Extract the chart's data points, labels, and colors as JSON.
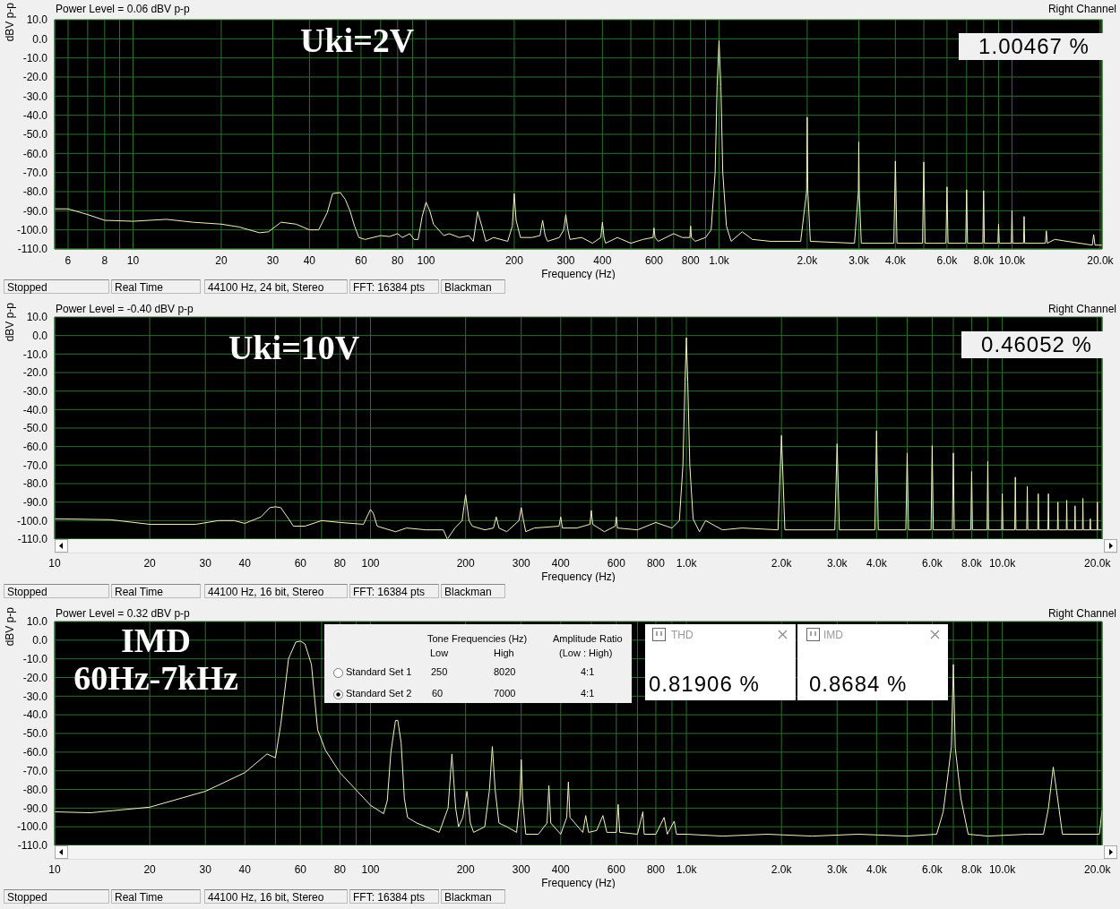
{
  "chart_data": [
    {
      "type": "line",
      "subtitle": "Power Level = 0.06 dBV p-p",
      "xlabel": "Frequency (Hz)",
      "ylabel": "dBV p-p",
      "log": "x",
      "grid": true,
      "color": "#f2f2c4",
      "annotations": [
        "Uki=2V",
        "1.00467 %",
        "Right Channel",
        "Stopped",
        "Real Time",
        "44100 Hz, 24 bit, Stereo",
        "FFT: 16384 pts",
        "Blackman"
      ],
      "xlim": [
        5.4,
        20300
      ],
      "ylim": [
        -110,
        10
      ],
      "xticks": [
        6,
        {
          "value": 7,
          "label": null
        },
        8,
        {
          "value": 9,
          "label": null
        },
        10,
        20,
        30,
        40,
        {
          "value": 50,
          "label": null
        },
        60,
        {
          "value": 70,
          "label": null
        },
        80,
        {
          "value": 90,
          "label": null
        },
        100,
        200,
        300,
        400,
        {
          "value": 500,
          "label": null
        },
        600,
        {
          "value": 700,
          "label": null
        },
        800,
        {
          "value": 900,
          "label": null
        },
        {
          "value": 1000,
          "label": "1.0k"
        },
        {
          "value": 2000,
          "label": "2.0k"
        },
        {
          "value": 3000,
          "label": "3.0k"
        },
        {
          "value": 4000,
          "label": "4.0k"
        },
        {
          "value": 5000,
          "label": null
        },
        {
          "value": 6000,
          "label": "6.0k"
        },
        {
          "value": 7000,
          "label": null
        },
        {
          "value": 8000,
          "label": "8.0k"
        },
        {
          "value": 9000,
          "label": null
        },
        {
          "value": 10000,
          "label": "10.0k"
        },
        {
          "value": 20000,
          "label": "20.0k"
        }
      ],
      "yticks": [
        {
          "value": 10,
          "label": "10.0"
        },
        {
          "value": 0,
          "label": "0.0"
        },
        {
          "value": -10,
          "label": "-10.0"
        },
        {
          "value": -20,
          "label": "-20.0"
        },
        {
          "value": -30,
          "label": "-30.0"
        },
        {
          "value": -40,
          "label": "-40.0"
        },
        {
          "value": -50,
          "label": "-50.0"
        },
        {
          "value": -60,
          "label": "-60.0"
        },
        {
          "value": -70,
          "label": "-70.0"
        },
        {
          "value": -80,
          "label": "-80.0"
        },
        {
          "value": -90,
          "label": "-90.0"
        },
        {
          "value": -100,
          "label": "-100.0"
        },
        {
          "value": -110,
          "label": "-110.0"
        }
      ],
      "x": [
        5.4,
        6,
        7,
        8,
        10,
        13,
        16,
        20,
        23,
        27,
        29,
        32,
        36,
        40,
        43,
        46,
        48,
        51,
        53,
        55,
        57,
        59,
        62,
        70,
        75,
        80,
        83,
        88,
        91,
        94,
        97,
        100,
        103,
        106,
        115,
        120,
        130,
        140,
        145,
        150,
        155,
        160,
        170,
        190,
        197,
        200,
        203,
        210,
        230,
        245,
        250,
        255,
        260,
        285,
        295,
        300,
        305,
        310,
        340,
        370,
        395,
        400,
        405,
        410,
        450,
        500,
        550,
        595,
        600,
        605,
        620,
        700,
        750,
        795,
        800,
        805,
        830,
        900,
        940,
        970,
        985,
        1000,
        1015,
        1030,
        1060,
        1100,
        1200,
        1300,
        1500,
        1900,
        1990,
        2000,
        2010,
        2050,
        2900,
        2990,
        3000,
        3010,
        3060,
        3950,
        4000,
        4050,
        4950,
        5000,
        5050,
        5950,
        6000,
        6050,
        6950,
        7000,
        7050,
        7950,
        8000,
        8050,
        8950,
        9000,
        9050,
        9950,
        10000,
        10050,
        10950,
        11000,
        11050,
        13000,
        13100,
        13200,
        14000,
        18800,
        19000,
        19200,
        20300
      ],
      "values": [
        -89,
        -89,
        -92,
        -95,
        -95.5,
        -94.5,
        -96,
        -97,
        -98.5,
        -101.5,
        -101,
        -96,
        -97,
        -100,
        -100,
        -91,
        -81,
        -80.5,
        -84,
        -90,
        -98,
        -104,
        -105,
        -103,
        -103.5,
        -102,
        -104,
        -102,
        -105,
        -105,
        -93,
        -85.5,
        -90,
        -97,
        -103,
        -102,
        -104,
        -103,
        -106,
        -90.5,
        -98,
        -106,
        -104,
        -106,
        -98,
        -81,
        -95,
        -104,
        -104,
        -103,
        -95,
        -103,
        -106,
        -104,
        -100,
        -92,
        -100,
        -105,
        -104,
        -107,
        -104,
        -96,
        -104,
        -107,
        -104,
        -107,
        -105,
        -104,
        -99,
        -104,
        -106,
        -102,
        -104,
        -104,
        -98,
        -104,
        -106,
        -104,
        -100,
        -70,
        -25,
        -1,
        -25,
        -70,
        -98,
        -106,
        -101,
        -105,
        -106,
        -106,
        -80,
        -41,
        -80,
        -106,
        -107,
        -80,
        -54,
        -80,
        -107,
        -107,
        -64,
        -107,
        -107,
        -64.5,
        -107,
        -107,
        -77.5,
        -107,
        -107,
        -79,
        -107,
        -107,
        -79.5,
        -107,
        -107,
        -97,
        -107,
        -107,
        -90,
        -107,
        -107,
        -93,
        -107,
        -107,
        -100.5,
        -107,
        -105,
        -108,
        -102.5,
        -108,
        -108
      ]
    },
    {
      "type": "line",
      "subtitle": "Power Level = -0.40 dBV p-p",
      "xlabel": "Frequency (Hz)",
      "ylabel": "dBV p-p",
      "log": "x",
      "grid": true,
      "color": "#f2f2c4",
      "annotations": [
        "Uki=10V",
        "0.46052 %",
        "Right Channel",
        "Stopped",
        "Real Time",
        "44100 Hz, 16 bit, Stereo",
        "FFT: 16384 pts",
        "Blackman"
      ],
      "xlim": [
        10,
        20700
      ],
      "ylim": [
        -110,
        10
      ],
      "xticks": [
        10,
        20,
        30,
        40,
        {
          "value": 50,
          "label": null
        },
        60,
        {
          "value": 70,
          "label": null
        },
        80,
        {
          "value": 90,
          "label": null
        },
        100,
        200,
        300,
        400,
        {
          "value": 500,
          "label": null
        },
        600,
        {
          "value": 700,
          "label": null
        },
        800,
        {
          "value": 900,
          "label": null
        },
        {
          "value": 1000,
          "label": "1.0k"
        },
        {
          "value": 2000,
          "label": "2.0k"
        },
        {
          "value": 3000,
          "label": "3.0k"
        },
        {
          "value": 4000,
          "label": "4.0k"
        },
        {
          "value": 5000,
          "label": null
        },
        {
          "value": 6000,
          "label": "6.0k"
        },
        {
          "value": 7000,
          "label": null
        },
        {
          "value": 8000,
          "label": "8.0k"
        },
        {
          "value": 9000,
          "label": null
        },
        {
          "value": 10000,
          "label": "10.0k"
        },
        {
          "value": 20000,
          "label": "20.0k"
        }
      ],
      "yticks": [
        {
          "value": 10,
          "label": "10.0"
        },
        {
          "value": 0,
          "label": "0.0"
        },
        {
          "value": -10,
          "label": "-10.0"
        },
        {
          "value": -20,
          "label": "-20.0"
        },
        {
          "value": -30,
          "label": "-30.0"
        },
        {
          "value": -40,
          "label": "-40.0"
        },
        {
          "value": -50,
          "label": "-50.0"
        },
        {
          "value": -60,
          "label": "-60.0"
        },
        {
          "value": -70,
          "label": "-70.0"
        },
        {
          "value": -80,
          "label": "-80.0"
        },
        {
          "value": -90,
          "label": "-90.0"
        },
        {
          "value": -100,
          "label": "-100.0"
        },
        {
          "value": -110,
          "label": "-110.0"
        }
      ],
      "x": [
        10,
        15,
        20,
        28,
        33,
        37,
        40,
        45,
        48,
        50,
        52,
        55,
        57,
        62,
        70,
        80,
        95,
        98,
        100,
        102,
        105,
        120,
        130,
        150,
        170,
        175,
        185,
        195,
        200,
        205,
        210,
        230,
        245,
        250,
        255,
        270,
        295,
        300,
        305,
        310,
        330,
        395,
        400,
        405,
        450,
        495,
        500,
        505,
        550,
        595,
        600,
        605,
        700,
        800,
        900,
        950,
        975,
        990,
        1000,
        1010,
        1025,
        1050,
        1100,
        1150,
        1300,
        1500,
        1950,
        2000,
        2050,
        2950,
        3000,
        3050,
        3950,
        4000,
        4050,
        4950,
        5000,
        5050,
        5950,
        6000,
        6050,
        6950,
        7000,
        7050,
        7950,
        8000,
        8050,
        8950,
        9000,
        9050,
        9950,
        10000,
        10050,
        10950,
        11000,
        11050,
        11950,
        12000,
        12050,
        12950,
        13000,
        13050,
        13950,
        14000,
        14050,
        14950,
        15000,
        15050,
        15950,
        16000,
        16050,
        16950,
        17000,
        17050,
        17950,
        18000,
        18050,
        18950,
        19000,
        19050,
        19950,
        20000,
        20050,
        20700
      ],
      "values": [
        -99,
        -99.5,
        -102,
        -102,
        -100,
        -100,
        -101.5,
        -98,
        -93,
        -92.5,
        -93,
        -99,
        -103,
        -103,
        -100,
        -101,
        -102,
        -97,
        -94,
        -96,
        -103,
        -106,
        -104,
        -105,
        -105,
        -110,
        -104,
        -100,
        -86,
        -100,
        -103,
        -105,
        -104,
        -98,
        -104,
        -106,
        -100,
        -93,
        -100,
        -106,
        -104,
        -103,
        -98,
        -104,
        -104,
        -102,
        -94.5,
        -102,
        -106,
        -103,
        -98,
        -104,
        -105,
        -101,
        -104,
        -100,
        -70,
        -25,
        -1.2,
        -25,
        -70,
        -99,
        -106,
        -100,
        -105,
        -104,
        -105,
        -54,
        -105,
        -105,
        -58.5,
        -105,
        -105,
        -51.5,
        -105,
        -105,
        -63.5,
        -105,
        -105,
        -59.5,
        -105,
        -105,
        -63.5,
        -105,
        -105,
        -73.5,
        -105,
        -105,
        -68,
        -105,
        -105,
        -85.5,
        -105,
        -105,
        -76.5,
        -105,
        -105,
        -81.5,
        -105,
        -105,
        -85.5,
        -105,
        -105,
        -85.5,
        -105,
        -105,
        -90,
        -105,
        -105,
        -89,
        -105,
        -105,
        -92,
        -105,
        -105,
        -88,
        -105,
        -105,
        -99,
        -105,
        -105,
        -90,
        -105,
        -105
      ]
    },
    {
      "type": "line",
      "subtitle": "Power Level = 0.32 dBV p-p",
      "xlabel": "Frequency (Hz)",
      "ylabel": "dBV p-p",
      "log": "x",
      "grid": true,
      "color": "#f2f2c4",
      "annotations": [
        "IMD",
        "60Hz-7kHz",
        "Right Channel",
        "Stopped",
        "Real Time",
        "44100 Hz, 16 bit, Stereo",
        "FFT: 16384 pts",
        "Blackman",
        "Tone Frequencies (Hz)",
        "Low",
        "High",
        "Amplitude Ratio",
        "(Low : High)",
        "Standard Set 1",
        "250",
        "8020",
        "4:1",
        "Standard Set 2",
        "60",
        "7000",
        "4:1",
        "THD",
        "0.81906 %",
        "IMD",
        "0.8684 %"
      ],
      "xlim": [
        10,
        20700
      ],
      "ylim": [
        -110,
        10
      ],
      "xticks": [
        10,
        20,
        30,
        40,
        {
          "value": 50,
          "label": null
        },
        60,
        {
          "value": 70,
          "label": null
        },
        80,
        {
          "value": 90,
          "label": null
        },
        100,
        200,
        300,
        400,
        {
          "value": 500,
          "label": null
        },
        600,
        {
          "value": 700,
          "label": null
        },
        800,
        {
          "value": 900,
          "label": null
        },
        {
          "value": 1000,
          "label": "1.0k"
        },
        {
          "value": 2000,
          "label": "2.0k"
        },
        {
          "value": 3000,
          "label": "3.0k"
        },
        {
          "value": 4000,
          "label": "4.0k"
        },
        {
          "value": 5000,
          "label": null
        },
        {
          "value": 6000,
          "label": "6.0k"
        },
        {
          "value": 7000,
          "label": null
        },
        {
          "value": 8000,
          "label": "8.0k"
        },
        {
          "value": 9000,
          "label": null
        },
        {
          "value": 10000,
          "label": "10.0k"
        },
        {
          "value": 20000,
          "label": "20.0k"
        }
      ],
      "yticks": [
        {
          "value": 10,
          "label": "10.0"
        },
        {
          "value": 0,
          "label": "0.0"
        },
        {
          "value": -10,
          "label": "-10.0"
        },
        {
          "value": -20,
          "label": "-20.0"
        },
        {
          "value": -30,
          "label": "-30.0"
        },
        {
          "value": -40,
          "label": "-40.0"
        },
        {
          "value": -50,
          "label": "-50.0"
        },
        {
          "value": -60,
          "label": "-60.0"
        },
        {
          "value": -70,
          "label": "-70.0"
        },
        {
          "value": -80,
          "label": "-80.0"
        },
        {
          "value": -90,
          "label": "-90.0"
        },
        {
          "value": -100,
          "label": "-100.0"
        },
        {
          "value": -110,
          "label": "-110.0"
        }
      ],
      "x": [
        10,
        13,
        20,
        30,
        40,
        47,
        50,
        52,
        55,
        58,
        60,
        62,
        65,
        68,
        72,
        80,
        100,
        110,
        113,
        116,
        120,
        122,
        125,
        128,
        131,
        140,
        150,
        165,
        176,
        181,
        186,
        190,
        196,
        202,
        207,
        212,
        230,
        238,
        243,
        248,
        255,
        270,
        290,
        297,
        300,
        303,
        310,
        340,
        362,
        367,
        372,
        400,
        418,
        423,
        428,
        470,
        480,
        490,
        520,
        544,
        560,
        600,
        608,
        615,
        700,
        728,
        735,
        800,
        850,
        870,
        915,
        930,
        1000,
        1300,
        1800,
        2500,
        3500,
        5000,
        6200,
        6500,
        6700,
        6900,
        7000,
        7100,
        7400,
        7800,
        9000,
        12000,
        13500,
        14000,
        14500,
        15000,
        15500,
        19000,
        20300,
        20700
      ],
      "values": [
        -92,
        -92.5,
        -89.5,
        -81,
        -71,
        -61,
        -63,
        -45,
        -10,
        -1,
        -0.5,
        -2,
        -13,
        -48,
        -59,
        -71,
        -88.5,
        -93,
        -86,
        -60,
        -43,
        -43,
        -55,
        -85,
        -95,
        -98,
        -100,
        -103,
        -90,
        -61,
        -90,
        -100,
        -95,
        -81,
        -98,
        -103,
        -100,
        -80,
        -57,
        -80,
        -98,
        -100,
        -103,
        -85,
        -64,
        -85,
        -104,
        -104,
        -98,
        -78,
        -98,
        -104,
        -95,
        -76,
        -95,
        -103,
        -94,
        -103,
        -102,
        -94,
        -103,
        -103,
        -88,
        -103,
        -104,
        -92,
        -104,
        -104,
        -95,
        -104,
        -97,
        -104,
        -104,
        -105,
        -104,
        -105,
        -104,
        -105,
        -104,
        -92,
        -75,
        -57,
        -13,
        -58,
        -85,
        -104,
        -105,
        -104,
        -104,
        -90,
        -68,
        -86,
        -104,
        -104,
        -104,
        -91
      ]
    }
  ]
}
